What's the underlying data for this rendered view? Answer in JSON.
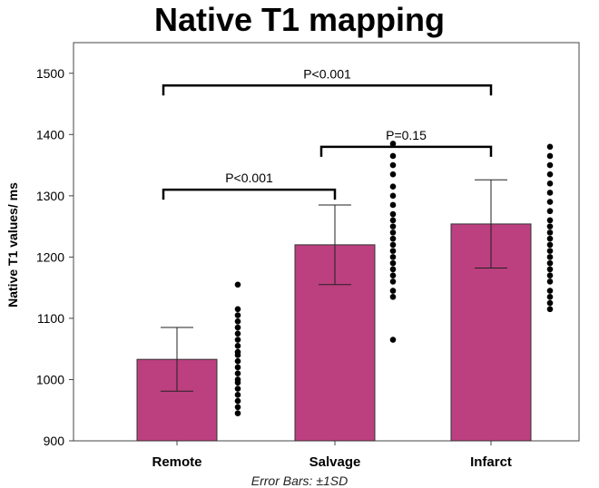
{
  "chart_data": {
    "type": "bar",
    "title": "Native T1 mapping",
    "ylabel": "Native T1 values/ ms",
    "xlabel": "",
    "footnote": "Error Bars: ±1SD",
    "categories": [
      "Remote",
      "Salvage",
      "Infarct"
    ],
    "values": [
      1033,
      1220,
      1254
    ],
    "error_sd": [
      52,
      65,
      72
    ],
    "ylim": [
      900,
      1550
    ],
    "yticks": [
      900,
      1000,
      1100,
      1200,
      1300,
      1400,
      1500
    ],
    "bar_color": "#bc3f7f",
    "points": [
      [
        945,
        955,
        965,
        975,
        985,
        995,
        1000,
        1010,
        1020,
        1030,
        1040,
        1045,
        1055,
        1065,
        1075,
        1085,
        1095,
        1105,
        1115,
        1155
      ],
      [
        1065,
        1135,
        1145,
        1160,
        1170,
        1180,
        1190,
        1200,
        1210,
        1220,
        1230,
        1240,
        1250,
        1260,
        1270,
        1285,
        1300,
        1315,
        1335,
        1350,
        1365,
        1385
      ],
      [
        1115,
        1125,
        1135,
        1145,
        1160,
        1170,
        1180,
        1190,
        1200,
        1210,
        1220,
        1230,
        1240,
        1250,
        1260,
        1275,
        1290,
        1305,
        1320,
        1335,
        1350,
        1365,
        1380
      ]
    ],
    "comparisons": [
      {
        "from": "Remote",
        "to": "Infarct",
        "label": "P<0.001",
        "y": 1480
      },
      {
        "from": "Salvage",
        "to": "Infarct",
        "label": "P=0.15",
        "y": 1380
      },
      {
        "from": "Remote",
        "to": "Salvage",
        "label": "P<0.001",
        "y": 1310
      }
    ],
    "grid": false,
    "legend": "none"
  }
}
